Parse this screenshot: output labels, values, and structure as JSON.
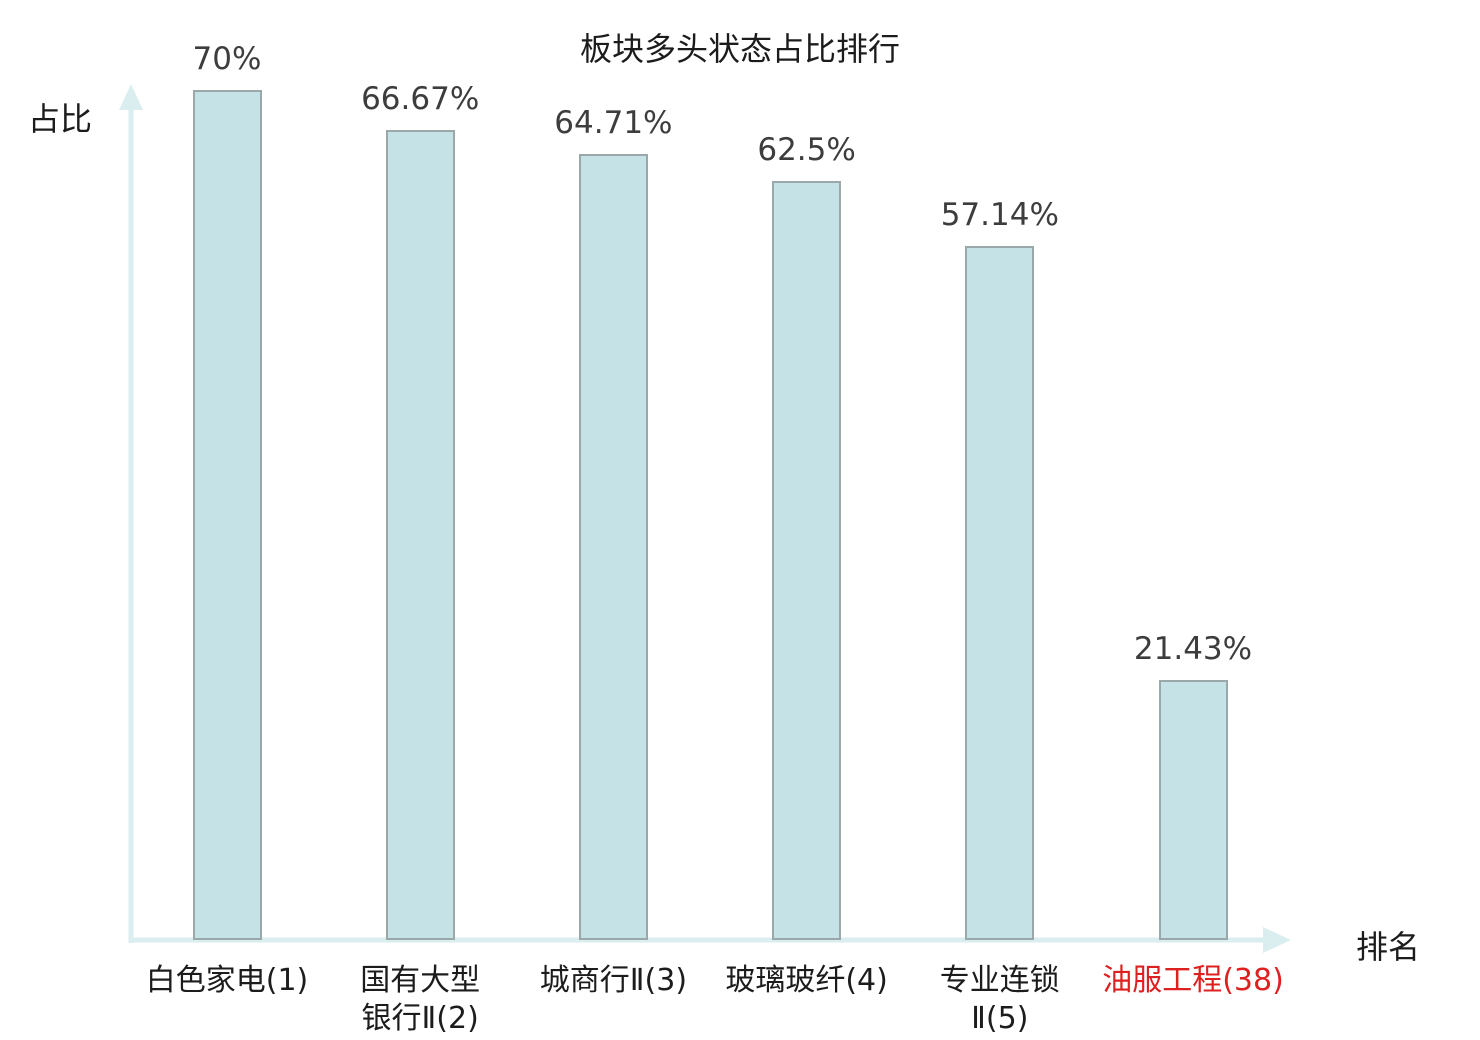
{
  "chart_data": {
    "type": "bar",
    "title": "板块多头状态占比排行",
    "xlabel": "排名",
    "ylabel": "占比",
    "ylim": [
      0,
      70
    ],
    "grid": false,
    "legend": false,
    "bar_orientation": "vertical",
    "categories": [
      "白色家电(1)",
      "国有大型\n银行Ⅱ(2)",
      "城商行Ⅱ(3)",
      "玻璃玻纤(4)",
      "专业连锁\nⅡ(5)",
      "油服工程(38)"
    ],
    "values": [
      70,
      66.67,
      64.71,
      62.5,
      57.14,
      21.43
    ],
    "value_labels": [
      "70%",
      "66.67%",
      "64.71%",
      "62.5%",
      "57.14%",
      "21.43%"
    ],
    "highlighted_index": 5
  },
  "colors": {
    "background": "#ffffff",
    "bar_fill": "#c5e2e6",
    "bar_border": "#9aa8aa",
    "axis_arrow": "#daeef0",
    "value_label": "#3d3d3d",
    "text": "#1c1c1c",
    "highlight_red": "#dd2020"
  }
}
